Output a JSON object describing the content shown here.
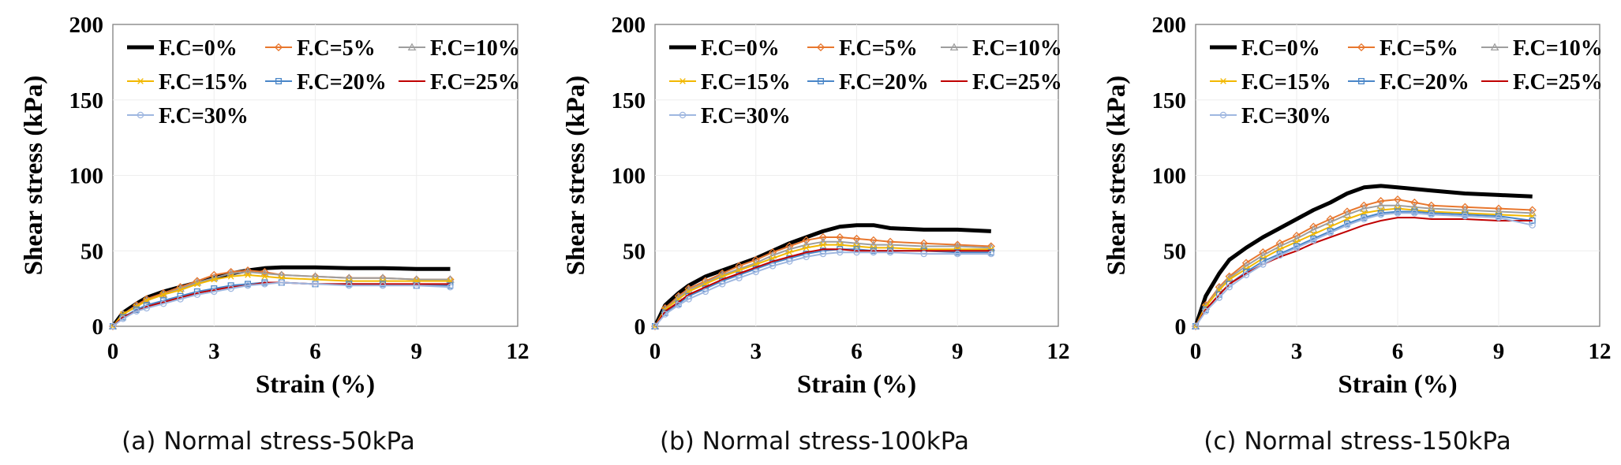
{
  "chart_data": [
    {
      "type": "line",
      "caption": "(a) Normal stress-50kPa",
      "xlabel": "Strain (%)",
      "ylabel": "Shear stress (kPa)",
      "xlim": [
        0,
        12
      ],
      "ylim": [
        0,
        200
      ],
      "xticks": [
        "0",
        "3",
        "6",
        "9",
        "12"
      ],
      "yticks": [
        "0",
        "50",
        "100",
        "150",
        "200"
      ],
      "grid": true,
      "legend": "top-left",
      "series": [
        {
          "name": "F.C=0%",
          "color": "#000000",
          "marker": "none",
          "x": [
            0,
            0.3,
            0.7,
            1,
            1.5,
            2,
            2.5,
            3,
            3.5,
            4,
            4.5,
            5,
            6,
            7,
            8,
            9,
            10
          ],
          "y": [
            0,
            9,
            15,
            19,
            23,
            26,
            29,
            32,
            35,
            37,
            38.5,
            39,
            39,
            38.5,
            38.5,
            38,
            38
          ]
        },
        {
          "name": "F.C=5%",
          "color": "#e8772e",
          "marker": "diamond",
          "x": [
            0,
            0.3,
            0.7,
            1,
            1.5,
            2,
            2.5,
            3,
            3.5,
            4,
            4.5,
            5,
            6,
            7,
            8,
            9,
            10
          ],
          "y": [
            0,
            8,
            14,
            18,
            22,
            26,
            30,
            34,
            36,
            37,
            36,
            34,
            33,
            32,
            32,
            31,
            31
          ]
        },
        {
          "name": "F.C=10%",
          "color": "#9e9e9e",
          "marker": "triangle",
          "x": [
            0,
            0.3,
            0.7,
            1,
            1.5,
            2,
            2.5,
            3,
            3.5,
            4,
            4.5,
            5,
            6,
            7,
            8,
            9,
            10
          ],
          "y": [
            0,
            8,
            13,
            17,
            21,
            25,
            29,
            32,
            35,
            36,
            35,
            34,
            33,
            32,
            32,
            31,
            31
          ]
        },
        {
          "name": "F.C=15%",
          "color": "#f2b800",
          "marker": "x",
          "x": [
            0,
            0.3,
            0.7,
            1,
            1.5,
            2,
            2.5,
            3,
            3.5,
            4,
            4.5,
            5,
            6,
            7,
            8,
            9,
            10
          ],
          "y": [
            0,
            8,
            13,
            17,
            21,
            24,
            28,
            31,
            33,
            34,
            33,
            32,
            31,
            30,
            30,
            30,
            30
          ]
        },
        {
          "name": "F.C=20%",
          "color": "#4a86c8",
          "marker": "square",
          "x": [
            0,
            0.3,
            0.7,
            1,
            1.5,
            2,
            2.5,
            3,
            3.5,
            4,
            4.5,
            5,
            6,
            7,
            8,
            9,
            10
          ],
          "y": [
            0,
            6,
            11,
            14,
            17,
            20,
            23,
            25,
            27,
            28,
            29,
            29,
            28,
            28,
            28,
            27,
            27
          ]
        },
        {
          "name": "F.C=25%",
          "color": "#c00000",
          "marker": "none",
          "x": [
            0,
            0.3,
            0.7,
            1,
            1.5,
            2,
            2.5,
            3,
            3.5,
            4,
            4.5,
            5,
            6,
            7,
            8,
            9,
            10
          ],
          "y": [
            0,
            6,
            10,
            13,
            16,
            19,
            22,
            24,
            26,
            27,
            29,
            29,
            28,
            28,
            28,
            28,
            28
          ]
        },
        {
          "name": "F.C=30%",
          "color": "#9fb7e0",
          "marker": "circle",
          "x": [
            0,
            0.3,
            0.7,
            1,
            1.5,
            2,
            2.5,
            3,
            3.5,
            4,
            4.5,
            5,
            6,
            7,
            8,
            9,
            10
          ],
          "y": [
            0,
            5,
            10,
            12,
            15,
            18,
            21,
            23,
            25,
            27,
            28,
            29,
            28,
            27,
            27,
            27,
            26
          ]
        }
      ]
    },
    {
      "type": "line",
      "caption": "(b) Normal stress-100kPa",
      "xlabel": "Strain (%)",
      "ylabel": "Shear stress (kPa)",
      "xlim": [
        0,
        12
      ],
      "ylim": [
        0,
        200
      ],
      "xticks": [
        "0",
        "3",
        "6",
        "9",
        "12"
      ],
      "yticks": [
        "0",
        "50",
        "100",
        "150",
        "200"
      ],
      "grid": true,
      "legend": "top-left",
      "series": [
        {
          "name": "F.C=0%",
          "color": "#000000",
          "marker": "none",
          "x": [
            0,
            0.3,
            0.7,
            1,
            1.5,
            2,
            2.5,
            3,
            3.5,
            4,
            4.5,
            5,
            5.5,
            6,
            6.5,
            7,
            8,
            9,
            10
          ],
          "y": [
            0,
            14,
            22,
            27,
            33,
            37,
            41,
            45,
            50,
            55,
            59,
            63,
            66,
            67,
            67,
            65,
            64,
            64,
            63
          ]
        },
        {
          "name": "F.C=5%",
          "color": "#e8772e",
          "marker": "diamond",
          "x": [
            0,
            0.3,
            0.7,
            1,
            1.5,
            2,
            2.5,
            3,
            3.5,
            4,
            4.5,
            5,
            5.5,
            6,
            6.5,
            7,
            8,
            9,
            10
          ],
          "y": [
            0,
            12,
            20,
            25,
            30,
            35,
            40,
            44,
            49,
            53,
            57,
            59,
            59,
            58,
            57,
            56,
            55,
            54,
            53
          ]
        },
        {
          "name": "F.C=10%",
          "color": "#9e9e9e",
          "marker": "triangle",
          "x": [
            0,
            0.3,
            0.7,
            1,
            1.5,
            2,
            2.5,
            3,
            3.5,
            4,
            4.5,
            5,
            5.5,
            6,
            6.5,
            7,
            8,
            9,
            10
          ],
          "y": [
            0,
            11,
            19,
            24,
            29,
            34,
            38,
            42,
            47,
            51,
            54,
            56,
            56,
            55,
            54,
            54,
            53,
            53,
            52
          ]
        },
        {
          "name": "F.C=15%",
          "color": "#f2b800",
          "marker": "x",
          "x": [
            0,
            0.3,
            0.7,
            1,
            1.5,
            2,
            2.5,
            3,
            3.5,
            4,
            4.5,
            5,
            5.5,
            6,
            6.5,
            7,
            8,
            9,
            10
          ],
          "y": [
            0,
            11,
            18,
            23,
            28,
            33,
            37,
            41,
            45,
            49,
            52,
            54,
            54,
            53,
            52,
            52,
            51,
            51,
            51
          ]
        },
        {
          "name": "F.C=20%",
          "color": "#4a86c8",
          "marker": "square",
          "x": [
            0,
            0.3,
            0.7,
            1,
            1.5,
            2,
            2.5,
            3,
            3.5,
            4,
            4.5,
            5,
            5.5,
            6,
            6.5,
            7,
            8,
            9,
            10
          ],
          "y": [
            0,
            9,
            15,
            20,
            25,
            30,
            34,
            38,
            42,
            45,
            48,
            50,
            51,
            51,
            50,
            50,
            50,
            49,
            49
          ]
        },
        {
          "name": "F.C=25%",
          "color": "#c00000",
          "marker": "none",
          "x": [
            0,
            0.3,
            0.7,
            1,
            1.5,
            2,
            2.5,
            3,
            3.5,
            4,
            4.5,
            5,
            5.5,
            6,
            6.5,
            7,
            8,
            9,
            10
          ],
          "y": [
            0,
            10,
            16,
            21,
            26,
            31,
            35,
            39,
            43,
            46,
            49,
            51,
            51,
            50,
            50,
            50,
            50,
            50,
            50
          ]
        },
        {
          "name": "F.C=30%",
          "color": "#9fb7e0",
          "marker": "circle",
          "x": [
            0,
            0.3,
            0.7,
            1,
            1.5,
            2,
            2.5,
            3,
            3.5,
            4,
            4.5,
            5,
            5.5,
            6,
            6.5,
            7,
            8,
            9,
            10
          ],
          "y": [
            0,
            8,
            14,
            18,
            23,
            28,
            32,
            36,
            40,
            43,
            46,
            48,
            49,
            49,
            49,
            49,
            48,
            48,
            48
          ]
        }
      ]
    },
    {
      "type": "line",
      "caption": "(c) Normal stress-150kPa",
      "xlabel": "Strain (%)",
      "ylabel": "Shear stress (kPa)",
      "xlim": [
        0,
        12
      ],
      "ylim": [
        0,
        200
      ],
      "xticks": [
        "0",
        "3",
        "6",
        "9",
        "12"
      ],
      "yticks": [
        "0",
        "50",
        "100",
        "150",
        "200"
      ],
      "grid": true,
      "legend": "top-left",
      "series": [
        {
          "name": "F.C=0%",
          "color": "#000000",
          "marker": "none",
          "x": [
            0,
            0.3,
            0.7,
            1,
            1.5,
            2,
            2.5,
            3,
            3.5,
            4,
            4.5,
            5,
            5.5,
            6,
            6.5,
            7,
            8,
            9,
            10
          ],
          "y": [
            0,
            20,
            35,
            44,
            52,
            59,
            65,
            71,
            77,
            82,
            88,
            92,
            93,
            92,
            91,
            90,
            88,
            87,
            86
          ]
        },
        {
          "name": "F.C=5%",
          "color": "#e8772e",
          "marker": "diamond",
          "x": [
            0,
            0.3,
            0.7,
            1,
            1.5,
            2,
            2.5,
            3,
            3.5,
            4,
            4.5,
            5,
            5.5,
            6,
            6.5,
            7,
            8,
            9,
            10
          ],
          "y": [
            0,
            14,
            26,
            33,
            42,
            49,
            55,
            60,
            66,
            71,
            76,
            80,
            83,
            84,
            82,
            80,
            79,
            78,
            77
          ]
        },
        {
          "name": "F.C=10%",
          "color": "#9e9e9e",
          "marker": "triangle",
          "x": [
            0,
            0.3,
            0.7,
            1,
            1.5,
            2,
            2.5,
            3,
            3.5,
            4,
            4.5,
            5,
            5.5,
            6,
            6.5,
            7,
            8,
            9,
            10
          ],
          "y": [
            0,
            13,
            25,
            32,
            40,
            47,
            53,
            58,
            64,
            69,
            74,
            78,
            80,
            80,
            79,
            78,
            77,
            76,
            75
          ]
        },
        {
          "name": "F.C=15%",
          "color": "#f2b800",
          "marker": "x",
          "x": [
            0,
            0.3,
            0.7,
            1,
            1.5,
            2,
            2.5,
            3,
            3.5,
            4,
            4.5,
            5,
            5.5,
            6,
            6.5,
            7,
            8,
            9,
            10
          ],
          "y": [
            0,
            13,
            24,
            31,
            38,
            45,
            51,
            56,
            61,
            66,
            71,
            75,
            77,
            78,
            77,
            76,
            75,
            74,
            73
          ]
        },
        {
          "name": "F.C=20%",
          "color": "#4a86c8",
          "marker": "square",
          "x": [
            0,
            0.3,
            0.7,
            1,
            1.5,
            2,
            2.5,
            3,
            3.5,
            4,
            4.5,
            5,
            5.5,
            6,
            6.5,
            7,
            8,
            9,
            10
          ],
          "y": [
            0,
            11,
            21,
            28,
            36,
            43,
            48,
            53,
            58,
            63,
            68,
            72,
            75,
            76,
            76,
            75,
            74,
            73,
            70
          ]
        },
        {
          "name": "F.C=25%",
          "color": "#c00000",
          "marker": "none",
          "x": [
            0,
            0.3,
            0.7,
            1,
            1.5,
            2,
            2.5,
            3,
            3.5,
            4,
            4.5,
            5,
            5.5,
            6,
            6.5,
            7,
            8,
            9,
            10
          ],
          "y": [
            0,
            11,
            21,
            28,
            35,
            41,
            46,
            50,
            55,
            59,
            63,
            67,
            70,
            72,
            72,
            71,
            71,
            70,
            70
          ]
        },
        {
          "name": "F.C=30%",
          "color": "#9fb7e0",
          "marker": "circle",
          "x": [
            0,
            0.3,
            0.7,
            1,
            1.5,
            2,
            2.5,
            3,
            3.5,
            4,
            4.5,
            5,
            5.5,
            6,
            6.5,
            7,
            8,
            9,
            10
          ],
          "y": [
            0,
            10,
            19,
            26,
            34,
            41,
            47,
            52,
            57,
            62,
            67,
            71,
            74,
            75,
            75,
            74,
            73,
            72,
            67
          ]
        }
      ]
    }
  ]
}
